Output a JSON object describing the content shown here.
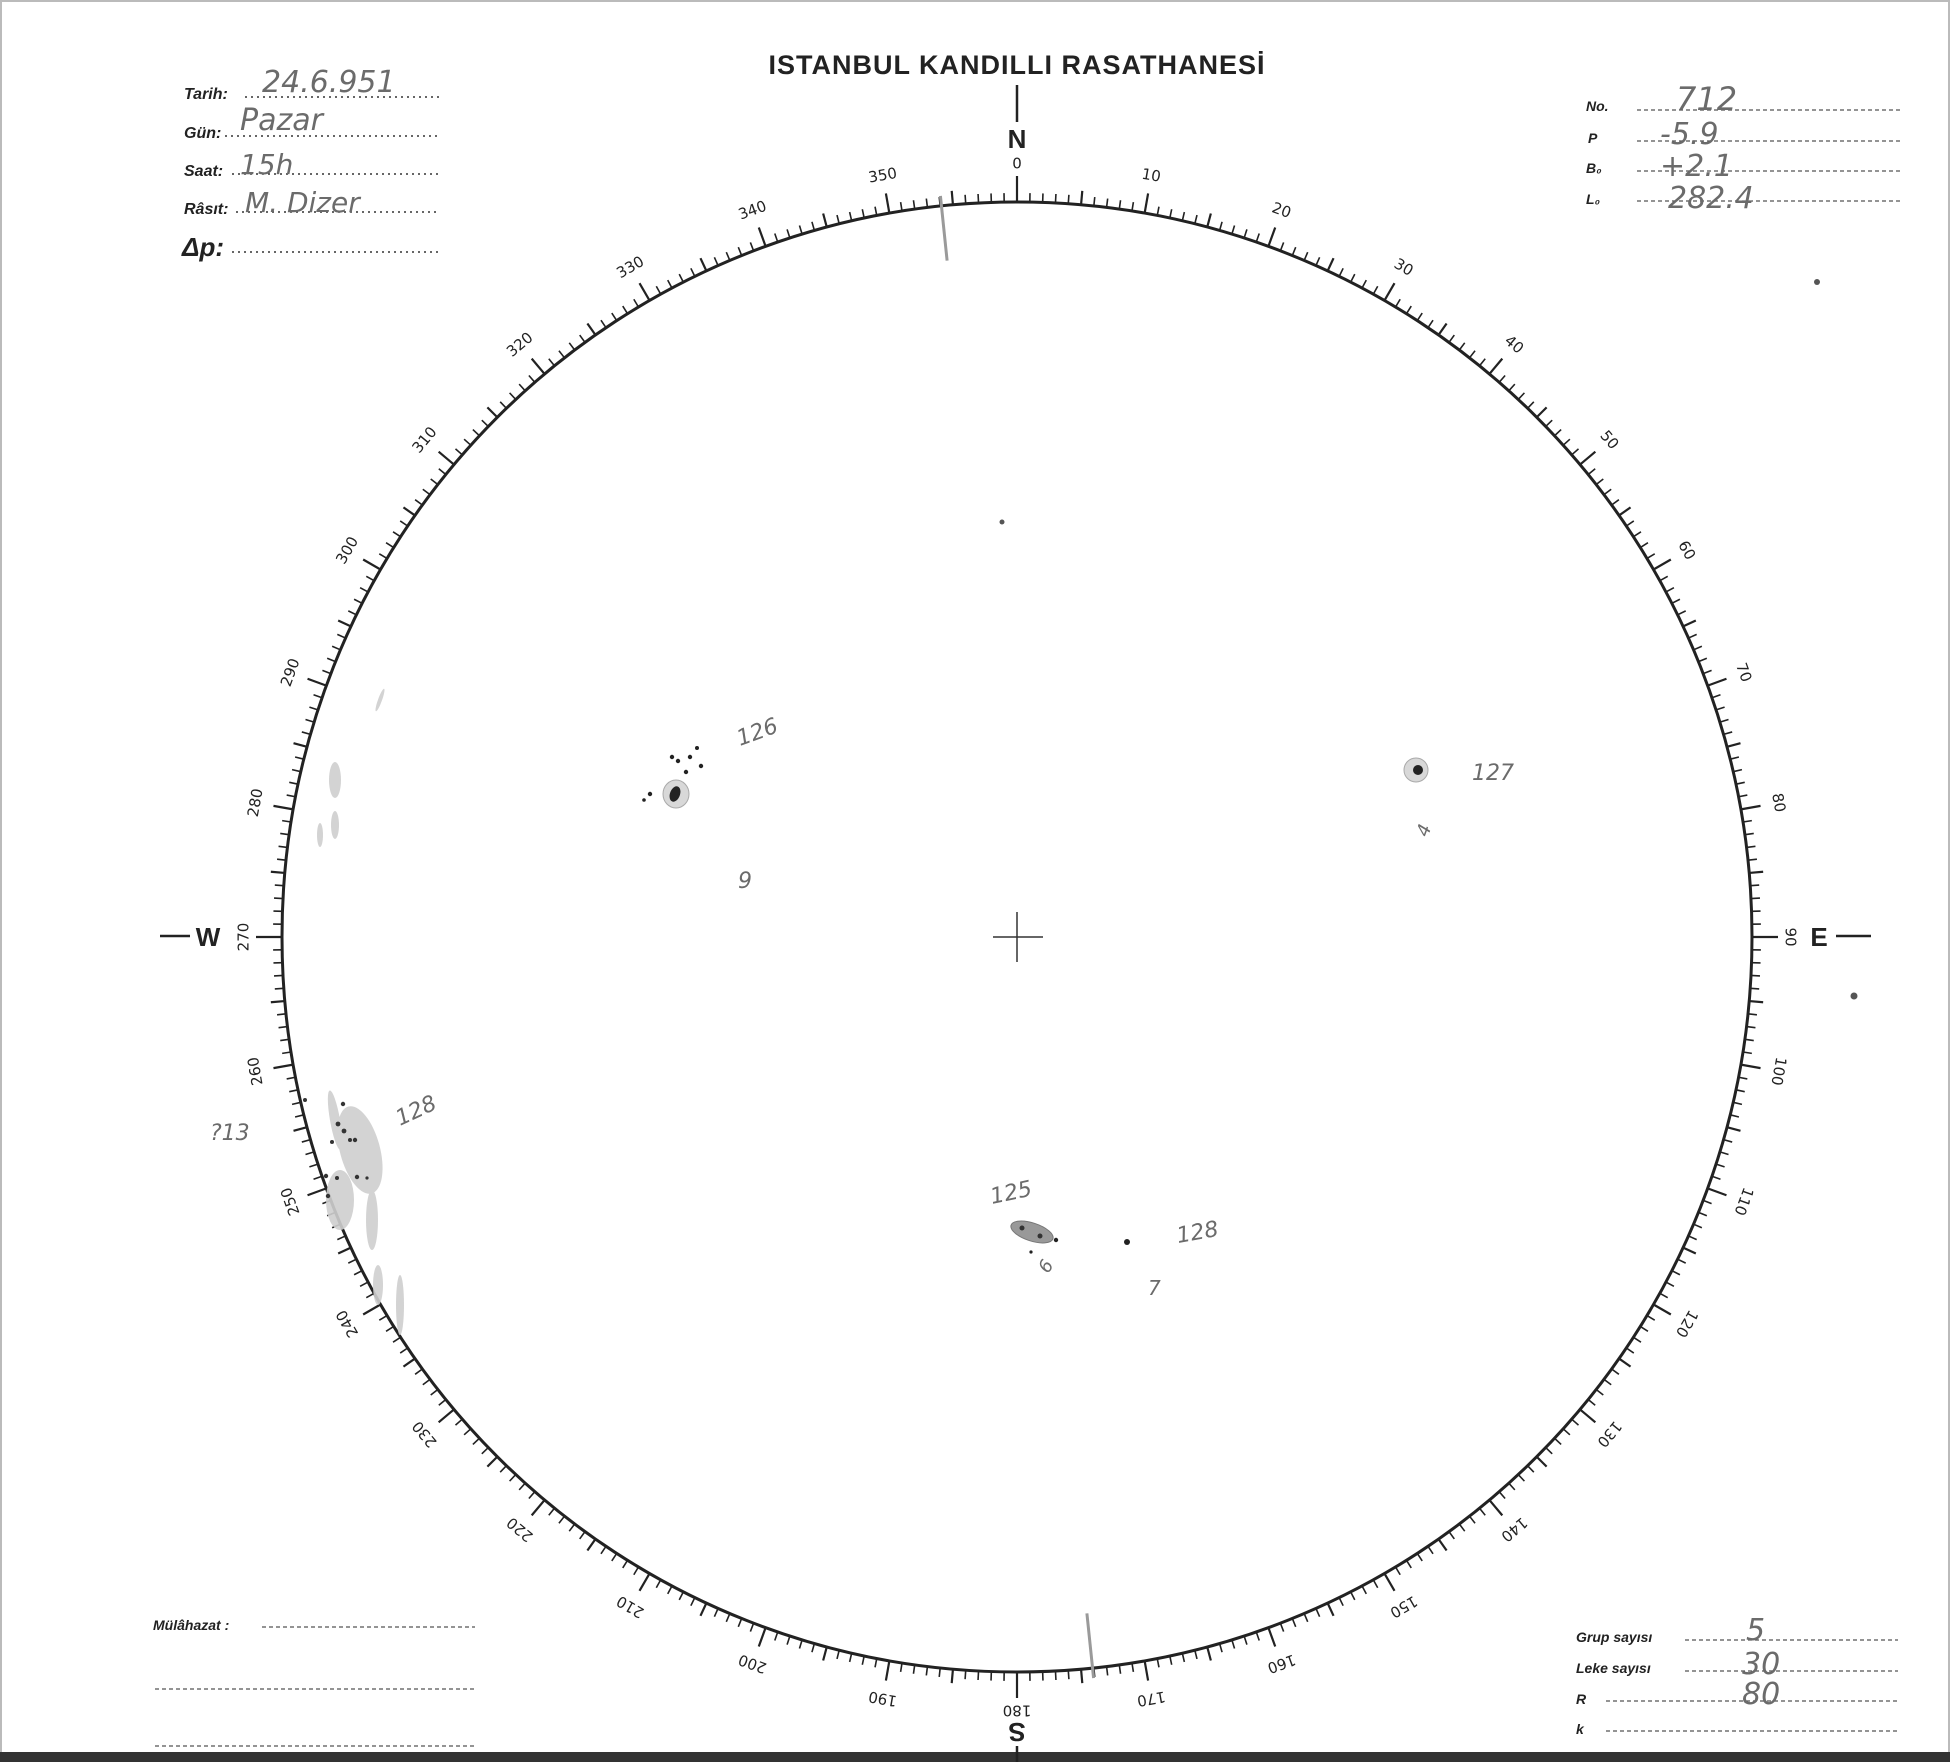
{
  "title": "ISTANBUL KANDILLI RASATHANESİ",
  "header_left": {
    "tarih_label": "Tarih:",
    "tarih_value": "24.6.951",
    "gun_label": "Gün:",
    "gun_value": "Pazar",
    "saat_label": "Saat:",
    "saat_value": "15h",
    "rasit_label": "Râsıt:",
    "rasit_value": "M. Dizer",
    "delta_p_label": "Δp:",
    "delta_p_value": ""
  },
  "header_right": {
    "no_label": "No.",
    "no_value": "712",
    "p_label": "P",
    "p_value": "-5.9",
    "b0_label": "B₀",
    "b0_value": "+2.1",
    "l0_label": "L₀",
    "l0_value": "282.4"
  },
  "footer_left": {
    "mulahazat_label": "Mülâhazat :",
    "mulahazat_value": ""
  },
  "footer_right": {
    "grup_label": "Grup sayısı",
    "grup_value": "5",
    "leke_label": "Leke sayısı",
    "leke_value": "30",
    "r_label": "R",
    "r_value": "80",
    "k_label": "k",
    "k_value": ""
  },
  "cardinals": {
    "north": "N",
    "east": "E",
    "south": "S",
    "west": "W"
  },
  "scale": {
    "labels": [
      "0",
      "10",
      "20",
      "30",
      "40",
      "50",
      "60",
      "70",
      "80",
      "90",
      "100",
      "110",
      "120",
      "130",
      "140",
      "150",
      "160",
      "170",
      "180",
      "190",
      "200",
      "210",
      "220",
      "230",
      "240",
      "250",
      "260",
      "270",
      "280",
      "290",
      "300",
      "310",
      "320",
      "330",
      "340",
      "350"
    ]
  },
  "p_angle_deg": -5.9,
  "annotations": {
    "group_126": "126",
    "group_126_count": "9",
    "group_127": "127",
    "group_127_count": "4",
    "group_125": "125",
    "group_125_count": "6",
    "group_128_spot": "128",
    "group_128_spot_count": "7",
    "group_128_limb": "128",
    "group_128_limb_count": "?13"
  },
  "colors": {
    "ink": "#222222",
    "pencil": "#6b6b6b",
    "p_line": "#9a9a9a"
  }
}
